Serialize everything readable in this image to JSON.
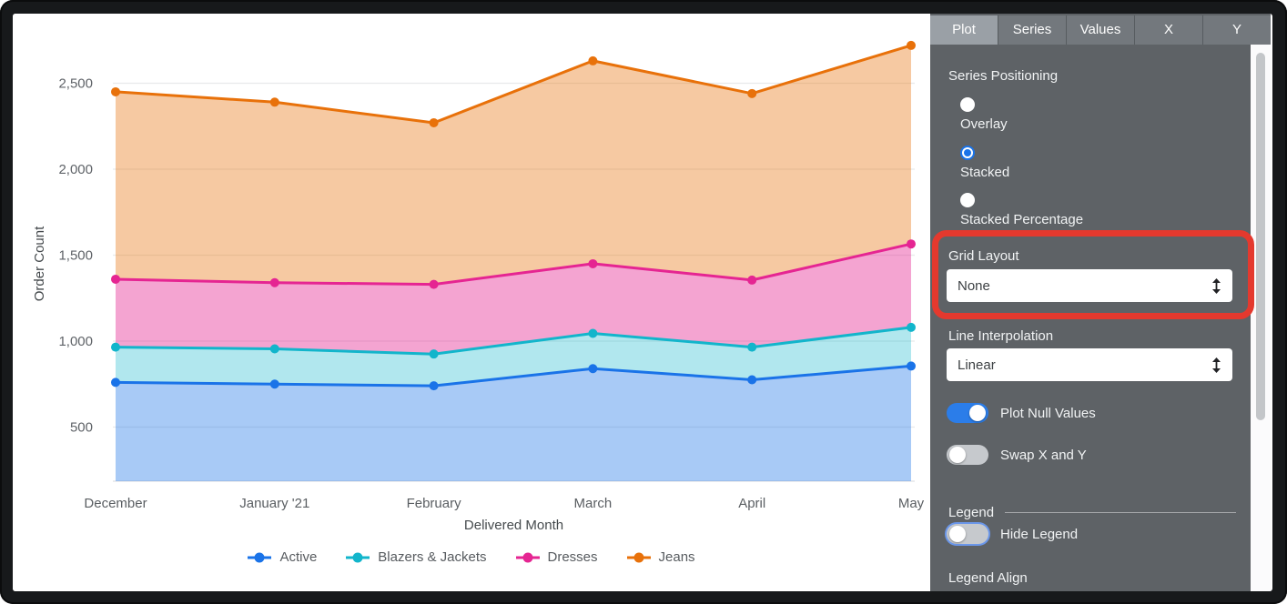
{
  "chart_data": {
    "type": "area",
    "stacked": true,
    "categories": [
      "December",
      "January '21",
      "February",
      "March",
      "April",
      "May"
    ],
    "series": [
      {
        "name": "Active",
        "color": "#1a73e8",
        "fill_opacity": 0.38,
        "values": [
          760,
          750,
          740,
          840,
          775,
          855
        ],
        "cumulative": [
          760,
          750,
          740,
          840,
          775,
          855
        ]
      },
      {
        "name": "Blazers & Jackets",
        "color": "#12b5cb",
        "fill_opacity": 0.33,
        "values": [
          205,
          205,
          185,
          205,
          190,
          225
        ],
        "cumulative": [
          965,
          955,
          925,
          1045,
          965,
          1080
        ]
      },
      {
        "name": "Dresses",
        "color": "#e52592",
        "fill_opacity": 0.42,
        "values": [
          395,
          385,
          405,
          405,
          390,
          485
        ],
        "cumulative": [
          1360,
          1340,
          1330,
          1450,
          1355,
          1565
        ]
      },
      {
        "name": "Jeans",
        "color": "#e8710a",
        "fill_opacity": 0.38,
        "values": [
          1090,
          1050,
          940,
          1180,
          1085,
          1155
        ],
        "cumulative": [
          2450,
          2390,
          2270,
          2630,
          2440,
          2720
        ]
      }
    ],
    "xlabel": "Delivered Month",
    "ylabel": "Order Count",
    "y_ticks": [
      500,
      1000,
      1500,
      2000,
      2500
    ],
    "y_tick_labels": [
      "500",
      "1,000",
      "1,500",
      "2,000",
      "2,500"
    ],
    "ylim": [
      185,
      2880
    ],
    "grid": "horizontal",
    "legend_position": "bottom"
  },
  "panel": {
    "tabs": [
      {
        "label": "Plot",
        "selected": true
      },
      {
        "label": "Series",
        "selected": false
      },
      {
        "label": "Values",
        "selected": false
      },
      {
        "label": "X",
        "selected": false
      },
      {
        "label": "Y",
        "selected": false
      }
    ],
    "series_positioning": {
      "label": "Series Positioning",
      "options": [
        {
          "label": "Overlay",
          "selected": false
        },
        {
          "label": "Stacked",
          "selected": true
        },
        {
          "label": "Stacked Percentage",
          "selected": false
        }
      ]
    },
    "grid_layout": {
      "label": "Grid Layout",
      "value": "None",
      "highlighted": true
    },
    "line_interpolation": {
      "label": "Line Interpolation",
      "value": "Linear"
    },
    "toggles": [
      {
        "label": "Plot Null Values",
        "on": true
      },
      {
        "label": "Swap X and Y",
        "on": false
      }
    ],
    "legend_section": {
      "header": "Legend",
      "hide_legend": {
        "label": "Hide Legend",
        "on": false,
        "focused": true
      },
      "legend_align_label": "Legend Align"
    },
    "highlight_color": "#e4392e",
    "accent_color": "#1a73e8"
  }
}
